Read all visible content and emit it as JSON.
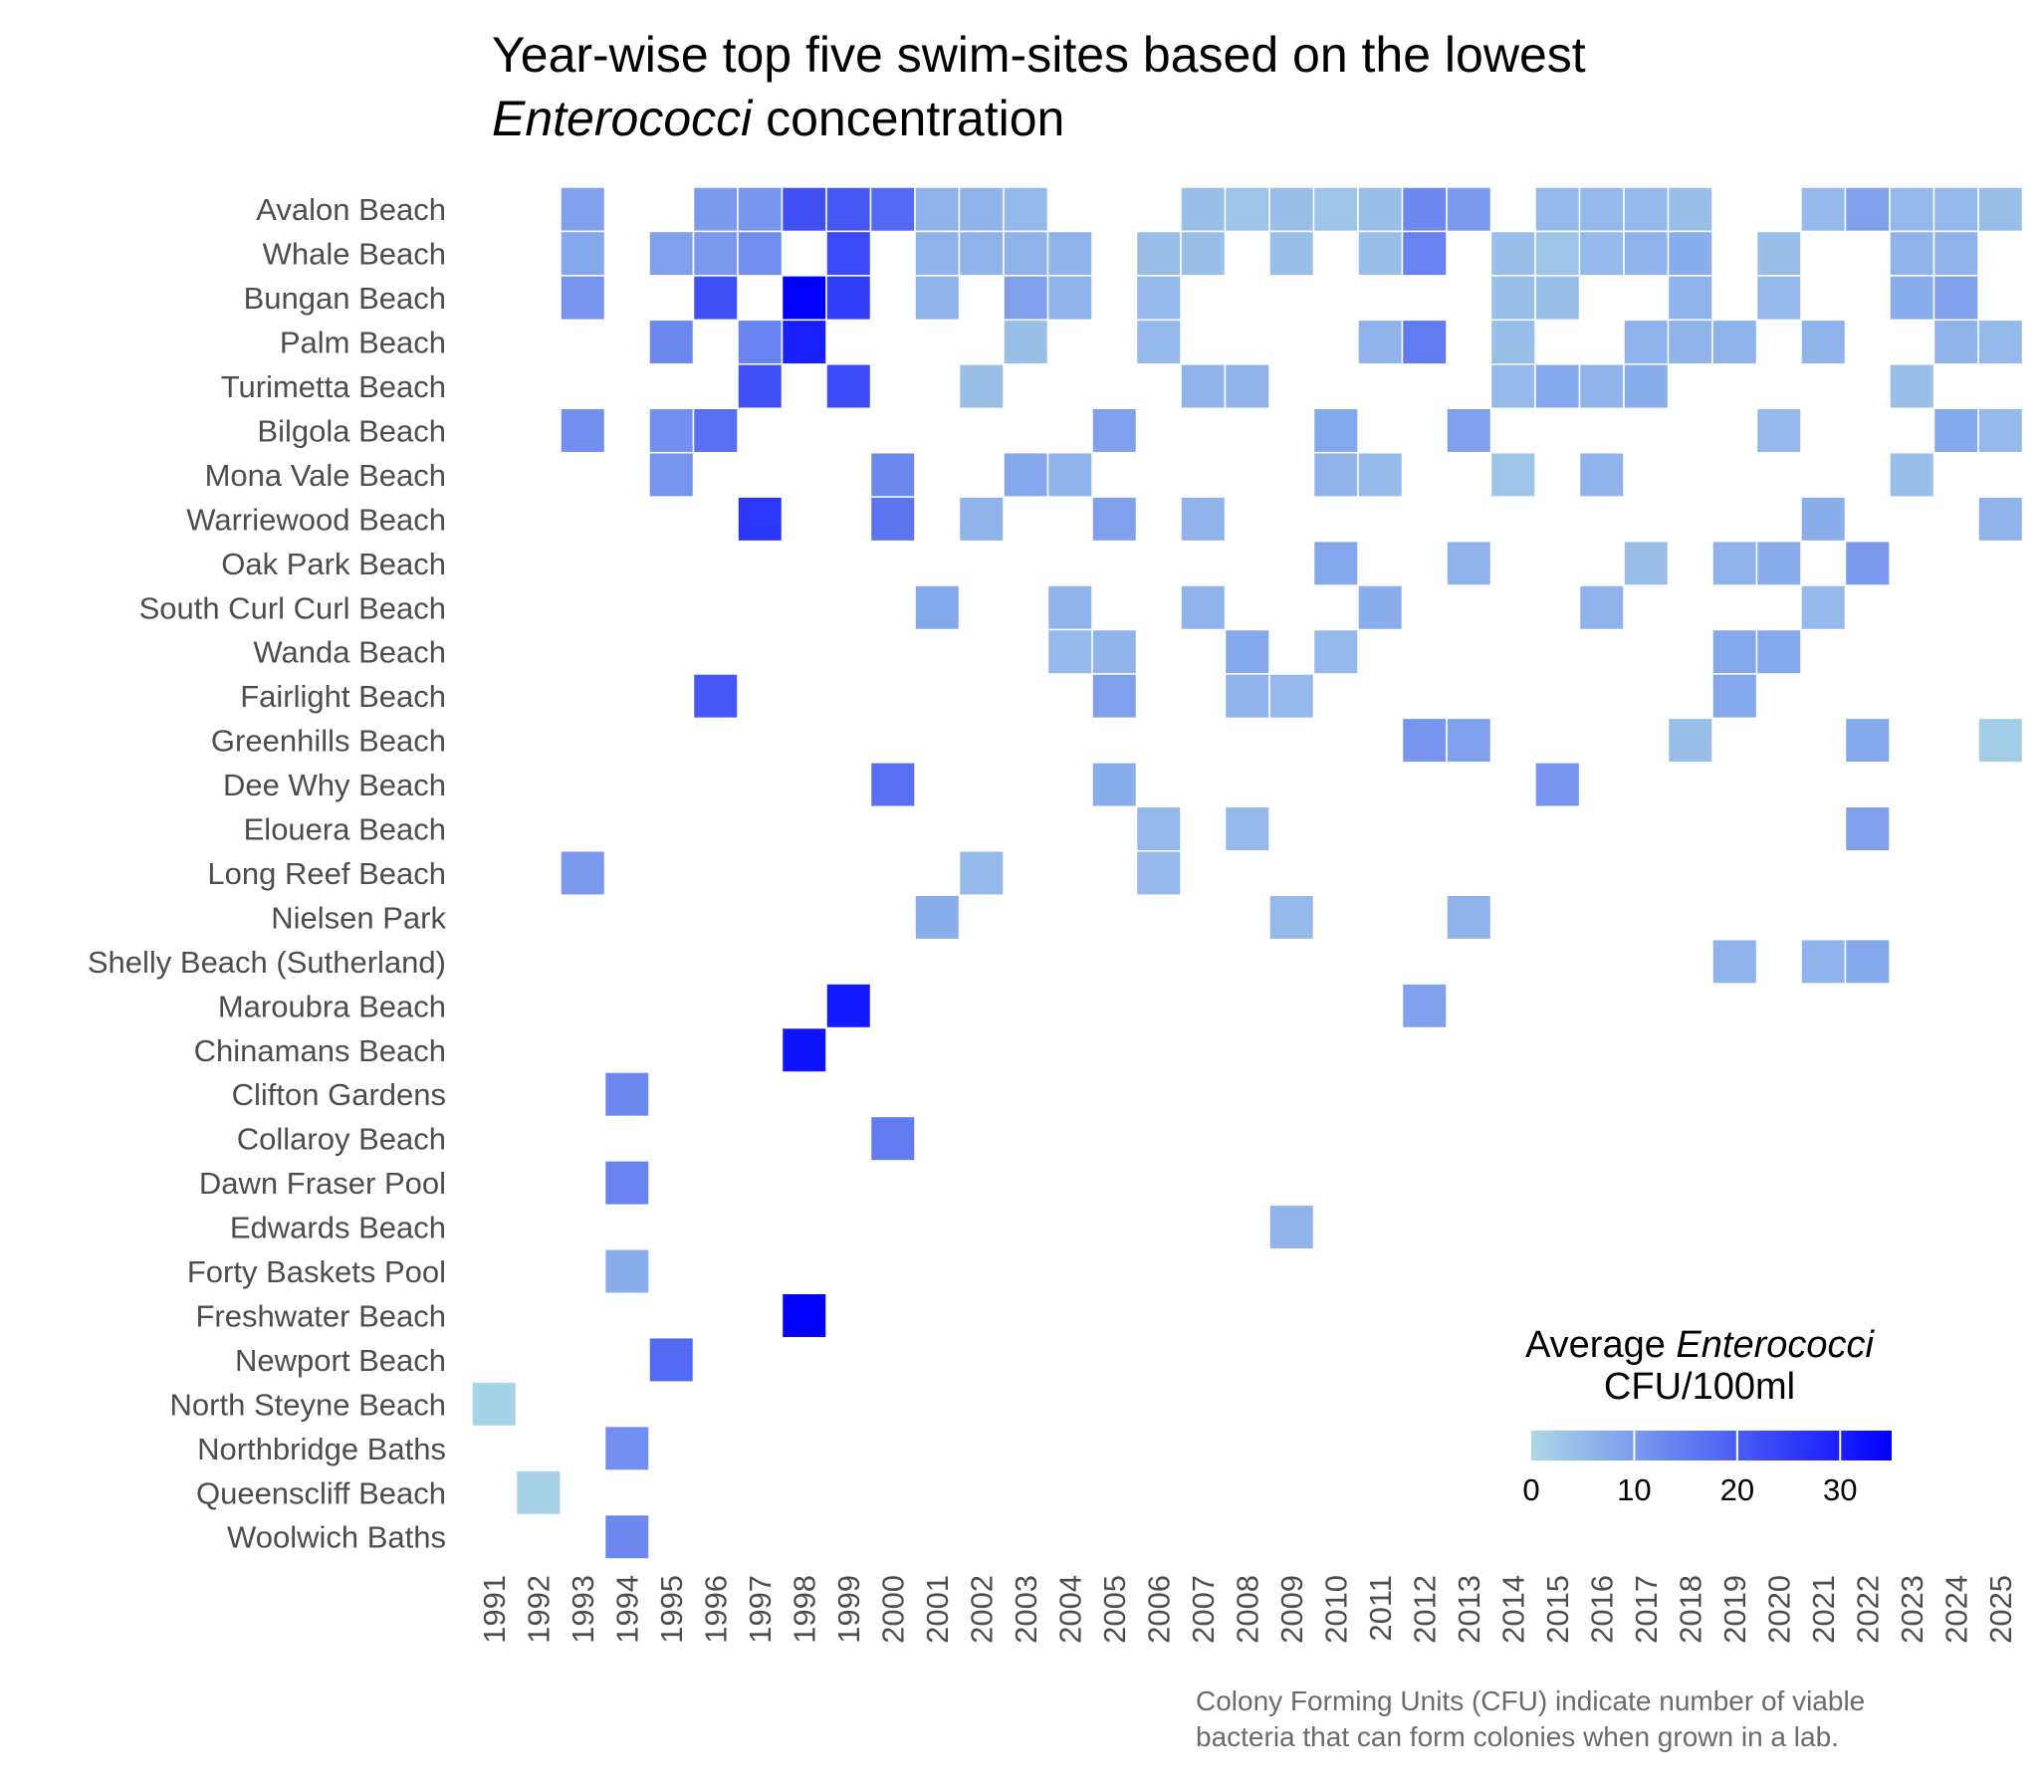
{
  "chart_data": {
    "type": "heatmap",
    "title": {
      "line1": "Year-wise top five swim-sites based on the lowest",
      "line2_italic": "Enterococci",
      "line2_rest": " concentration"
    },
    "years": [
      "1991",
      "1992",
      "1993",
      "1994",
      "1995",
      "1996",
      "1997",
      "1998",
      "1999",
      "2000",
      "2001",
      "2002",
      "2003",
      "2004",
      "2005",
      "2006",
      "2007",
      "2008",
      "2009",
      "2010",
      "2011",
      "2012",
      "2013",
      "2014",
      "2015",
      "2016",
      "2017",
      "2018",
      "2019",
      "2020",
      "2021",
      "2022",
      "2023",
      "2024",
      "2025"
    ],
    "sites": [
      "Avalon Beach",
      "Whale Beach",
      "Bungan Beach",
      "Palm Beach",
      "Turimetta Beach",
      "Bilgola Beach",
      "Mona Vale Beach",
      "Warriewood Beach",
      "Oak Park Beach",
      "South Curl Curl Beach",
      "Wanda Beach",
      "Fairlight Beach",
      "Greenhills Beach",
      "Dee Why Beach",
      "Elouera Beach",
      "Long Reef Beach",
      "Nielsen Park",
      "Shelly Beach (Sutherland)",
      "Maroubra Beach",
      "Chinamans Beach",
      "Clifton Gardens",
      "Collaroy Beach",
      "Dawn Fraser Pool",
      "Edwards Beach",
      "Forty Baskets Pool",
      "Freshwater Beach",
      "Newport Beach",
      "North Steyne Beach",
      "Northbridge Baths",
      "Queenscliff Beach",
      "Woolwich Baths"
    ],
    "values": [
      [
        "Avalon Beach",
        "1993",
        9
      ],
      [
        "Avalon Beach",
        "1996",
        10
      ],
      [
        "Avalon Beach",
        "1997",
        11
      ],
      [
        "Avalon Beach",
        "1998",
        22
      ],
      [
        "Avalon Beach",
        "1999",
        21
      ],
      [
        "Avalon Beach",
        "2000",
        18
      ],
      [
        "Avalon Beach",
        "2001",
        6
      ],
      [
        "Avalon Beach",
        "2002",
        6
      ],
      [
        "Avalon Beach",
        "2003",
        5
      ],
      [
        "Avalon Beach",
        "2007",
        4
      ],
      [
        "Avalon Beach",
        "2008",
        3
      ],
      [
        "Avalon Beach",
        "2009",
        4
      ],
      [
        "Avalon Beach",
        "2010",
        3
      ],
      [
        "Avalon Beach",
        "2011",
        4
      ],
      [
        "Avalon Beach",
        "2012",
        13
      ],
      [
        "Avalon Beach",
        "2013",
        10
      ],
      [
        "Avalon Beach",
        "2015",
        5
      ],
      [
        "Avalon Beach",
        "2016",
        5
      ],
      [
        "Avalon Beach",
        "2017",
        5
      ],
      [
        "Avalon Beach",
        "2018",
        4
      ],
      [
        "Avalon Beach",
        "2021",
        5
      ],
      [
        "Avalon Beach",
        "2022",
        9
      ],
      [
        "Avalon Beach",
        "2023",
        5
      ],
      [
        "Avalon Beach",
        "2024",
        5
      ],
      [
        "Avalon Beach",
        "2025",
        4
      ],
      [
        "Whale Beach",
        "1993",
        8
      ],
      [
        "Whale Beach",
        "1995",
        9
      ],
      [
        "Whale Beach",
        "1996",
        10
      ],
      [
        "Whale Beach",
        "1997",
        12
      ],
      [
        "Whale Beach",
        "1999",
        23
      ],
      [
        "Whale Beach",
        "2001",
        6
      ],
      [
        "Whale Beach",
        "2002",
        6
      ],
      [
        "Whale Beach",
        "2003",
        6
      ],
      [
        "Whale Beach",
        "2004",
        6
      ],
      [
        "Whale Beach",
        "2006",
        4
      ],
      [
        "Whale Beach",
        "2007",
        4
      ],
      [
        "Whale Beach",
        "2009",
        4
      ],
      [
        "Whale Beach",
        "2011",
        4
      ],
      [
        "Whale Beach",
        "2012",
        14
      ],
      [
        "Whale Beach",
        "2014",
        4
      ],
      [
        "Whale Beach",
        "2015",
        3
      ],
      [
        "Whale Beach",
        "2016",
        5
      ],
      [
        "Whale Beach",
        "2017",
        6
      ],
      [
        "Whale Beach",
        "2018",
        7
      ],
      [
        "Whale Beach",
        "2020",
        4
      ],
      [
        "Whale Beach",
        "2023",
        6
      ],
      [
        "Whale Beach",
        "2024",
        6
      ],
      [
        "Bungan Beach",
        "1993",
        11
      ],
      [
        "Bungan Beach",
        "1996",
        22
      ],
      [
        "Bungan Beach",
        "1998",
        35
      ],
      [
        "Bungan Beach",
        "1999",
        25
      ],
      [
        "Bungan Beach",
        "2001",
        6
      ],
      [
        "Bungan Beach",
        "2003",
        9
      ],
      [
        "Bungan Beach",
        "2004",
        6
      ],
      [
        "Bungan Beach",
        "2006",
        5
      ],
      [
        "Bungan Beach",
        "2014",
        4
      ],
      [
        "Bungan Beach",
        "2015",
        4
      ],
      [
        "Bungan Beach",
        "2018",
        6
      ],
      [
        "Bungan Beach",
        "2020",
        5
      ],
      [
        "Bungan Beach",
        "2023",
        7
      ],
      [
        "Bungan Beach",
        "2024",
        9
      ],
      [
        "Palm Beach",
        "1995",
        13
      ],
      [
        "Palm Beach",
        "1997",
        14
      ],
      [
        "Palm Beach",
        "1998",
        30
      ],
      [
        "Palm Beach",
        "2003",
        4
      ],
      [
        "Palm Beach",
        "2006",
        5
      ],
      [
        "Palm Beach",
        "2011",
        6
      ],
      [
        "Palm Beach",
        "2012",
        15
      ],
      [
        "Palm Beach",
        "2014",
        4
      ],
      [
        "Palm Beach",
        "2017",
        6
      ],
      [
        "Palm Beach",
        "2018",
        6
      ],
      [
        "Palm Beach",
        "2019",
        6
      ],
      [
        "Palm Beach",
        "2021",
        6
      ],
      [
        "Palm Beach",
        "2024",
        6
      ],
      [
        "Palm Beach",
        "2025",
        5
      ],
      [
        "Turimetta Beach",
        "1997",
        22
      ],
      [
        "Turimetta Beach",
        "1999",
        23
      ],
      [
        "Turimetta Beach",
        "2002",
        4
      ],
      [
        "Turimetta Beach",
        "2007",
        6
      ],
      [
        "Turimetta Beach",
        "2008",
        6
      ],
      [
        "Turimetta Beach",
        "2014",
        5
      ],
      [
        "Turimetta Beach",
        "2015",
        8
      ],
      [
        "Turimetta Beach",
        "2016",
        6
      ],
      [
        "Turimetta Beach",
        "2017",
        7
      ],
      [
        "Turimetta Beach",
        "2023",
        4
      ],
      [
        "Bilgola Beach",
        "1993",
        12
      ],
      [
        "Bilgola Beach",
        "1995",
        12
      ],
      [
        "Bilgola Beach",
        "1996",
        17
      ],
      [
        "Bilgola Beach",
        "2005",
        9
      ],
      [
        "Bilgola Beach",
        "2010",
        8
      ],
      [
        "Bilgola Beach",
        "2013",
        9
      ],
      [
        "Bilgola Beach",
        "2020",
        5
      ],
      [
        "Bilgola Beach",
        "2024",
        8
      ],
      [
        "Bilgola Beach",
        "2025",
        5
      ],
      [
        "Mona Vale Beach",
        "1995",
        11
      ],
      [
        "Mona Vale Beach",
        "2000",
        13
      ],
      [
        "Mona Vale Beach",
        "2003",
        8
      ],
      [
        "Mona Vale Beach",
        "2004",
        6
      ],
      [
        "Mona Vale Beach",
        "2010",
        6
      ],
      [
        "Mona Vale Beach",
        "2011",
        5
      ],
      [
        "Mona Vale Beach",
        "2014",
        3
      ],
      [
        "Mona Vale Beach",
        "2016",
        6
      ],
      [
        "Mona Vale Beach",
        "2023",
        4
      ],
      [
        "Warriewood Beach",
        "1997",
        26
      ],
      [
        "Warriewood Beach",
        "2000",
        16
      ],
      [
        "Warriewood Beach",
        "2002",
        6
      ],
      [
        "Warriewood Beach",
        "2005",
        9
      ],
      [
        "Warriewood Beach",
        "2007",
        6
      ],
      [
        "Warriewood Beach",
        "2021",
        7
      ],
      [
        "Warriewood Beach",
        "2025",
        6
      ],
      [
        "Oak Park Beach",
        "2010",
        8
      ],
      [
        "Oak Park Beach",
        "2013",
        6
      ],
      [
        "Oak Park Beach",
        "2017",
        4
      ],
      [
        "Oak Park Beach",
        "2019",
        6
      ],
      [
        "Oak Park Beach",
        "2020",
        7
      ],
      [
        "Oak Park Beach",
        "2022",
        10
      ],
      [
        "South Curl Curl Beach",
        "2001",
        8
      ],
      [
        "South Curl Curl Beach",
        "2004",
        6
      ],
      [
        "South Curl Curl Beach",
        "2007",
        6
      ],
      [
        "South Curl Curl Beach",
        "2011",
        7
      ],
      [
        "South Curl Curl Beach",
        "2016",
        6
      ],
      [
        "South Curl Curl Beach",
        "2021",
        5
      ],
      [
        "Wanda Beach",
        "2004",
        5
      ],
      [
        "Wanda Beach",
        "2005",
        6
      ],
      [
        "Wanda Beach",
        "2008",
        8
      ],
      [
        "Wanda Beach",
        "2010",
        5
      ],
      [
        "Wanda Beach",
        "2019",
        8
      ],
      [
        "Wanda Beach",
        "2020",
        8
      ],
      [
        "Fairlight Beach",
        "1996",
        21
      ],
      [
        "Fairlight Beach",
        "2005",
        9
      ],
      [
        "Fairlight Beach",
        "2008",
        6
      ],
      [
        "Fairlight Beach",
        "2009",
        5
      ],
      [
        "Fairlight Beach",
        "2019",
        8
      ],
      [
        "Greenhills Beach",
        "2012",
        11
      ],
      [
        "Greenhills Beach",
        "2013",
        9
      ],
      [
        "Greenhills Beach",
        "2018",
        4
      ],
      [
        "Greenhills Beach",
        "2022",
        8
      ],
      [
        "Greenhills Beach",
        "2025",
        2
      ],
      [
        "Dee Why Beach",
        "2000",
        17
      ],
      [
        "Dee Why Beach",
        "2005",
        7
      ],
      [
        "Dee Why Beach",
        "2015",
        11
      ],
      [
        "Elouera Beach",
        "2006",
        5
      ],
      [
        "Elouera Beach",
        "2008",
        5
      ],
      [
        "Elouera Beach",
        "2022",
        9
      ],
      [
        "Long Reef Beach",
        "1993",
        10
      ],
      [
        "Long Reef Beach",
        "2002",
        5
      ],
      [
        "Long Reef Beach",
        "2006",
        5
      ],
      [
        "Nielsen Park",
        "2001",
        7
      ],
      [
        "Nielsen Park",
        "2009",
        5
      ],
      [
        "Nielsen Park",
        "2013",
        6
      ],
      [
        "Shelly Beach (Sutherland)",
        "2019",
        6
      ],
      [
        "Shelly Beach (Sutherland)",
        "2021",
        6
      ],
      [
        "Shelly Beach (Sutherland)",
        "2022",
        8
      ],
      [
        "Maroubra Beach",
        "1999",
        31
      ],
      [
        "Maroubra Beach",
        "2012",
        9
      ],
      [
        "Chinamans Beach",
        "1998",
        32
      ],
      [
        "Clifton Gardens",
        "1994",
        13
      ],
      [
        "Collaroy Beach",
        "2000",
        15
      ],
      [
        "Dawn Fraser Pool",
        "1994",
        14
      ],
      [
        "Edwards Beach",
        "2009",
        6
      ],
      [
        "Forty Baskets Pool",
        "1994",
        7
      ],
      [
        "Freshwater Beach",
        "1998",
        35
      ],
      [
        "Newport Beach",
        "1995",
        18
      ],
      [
        "North Steyne Beach",
        "1991",
        1
      ],
      [
        "Northbridge Baths",
        "1994",
        12
      ],
      [
        "Queenscliff Beach",
        "1992",
        1
      ],
      [
        "Woolwich Baths",
        "1994",
        13
      ]
    ],
    "legend": {
      "title_line1_prefix": "Average ",
      "title_line1_italic": "Enterococci",
      "title_line2": "CFU/100ml",
      "ticks": [
        0,
        10,
        20,
        30
      ],
      "tick_labels": [
        "0",
        "10",
        "20",
        "30"
      ],
      "min": 0,
      "max": 35,
      "color_low": "#ADD8E6",
      "color_high": "#0000FF"
    },
    "caption": {
      "line1": "Colony Forming Units (CFU) indicate number of viable",
      "line2": "bacteria that can form colonies when grown in a lab."
    }
  }
}
